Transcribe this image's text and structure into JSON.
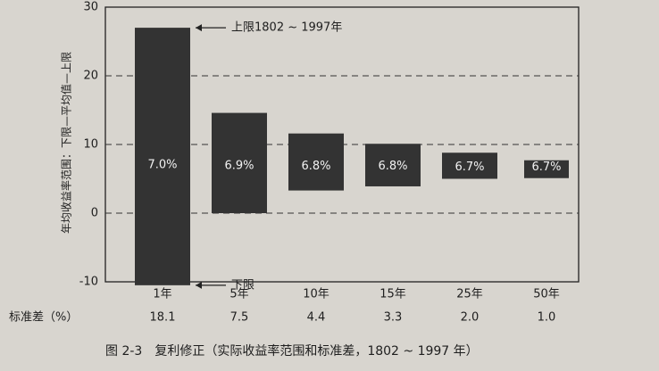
{
  "chart_data": {
    "type": "range_bar",
    "ylabel": "年均收益率范围：下限—平均值—上限",
    "categories": [
      "1年",
      "5年",
      "10年",
      "15年",
      "25年",
      "50年"
    ],
    "low": [
      -10.5,
      0,
      3.3,
      3.9,
      5.0,
      5.1
    ],
    "high": [
      27,
      14.6,
      11.6,
      10.1,
      8.8,
      7.7
    ],
    "values": [
      7.0,
      6.9,
      6.8,
      6.8,
      6.7,
      6.7
    ],
    "value_labels": [
      "7.0%",
      "6.9%",
      "6.8%",
      "6.8%",
      "6.7%",
      "6.7%"
    ],
    "color": "#333333",
    "ylim": [
      -10,
      30
    ],
    "yticks": [
      -10,
      0,
      10,
      20,
      30
    ],
    "grid": true,
    "upper_note": "上限1802 ~ 1997年",
    "lower_note": "下限",
    "std_label": "标准差（%）",
    "std_dev": [
      "18.1",
      "7.5",
      "4.4",
      "3.3",
      "2.0",
      "1.0"
    ],
    "caption": "图 2-3　复利修正（实际收益率范围和标准差，1802 ~ 1997 年）"
  }
}
